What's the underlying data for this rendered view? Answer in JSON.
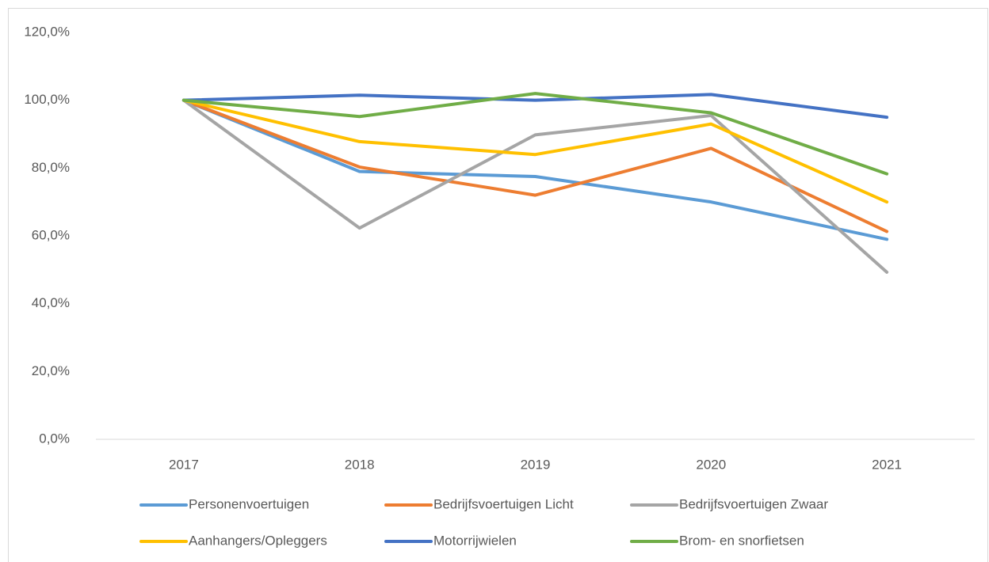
{
  "chart_data": {
    "type": "line",
    "categories": [
      "2017",
      "2018",
      "2019",
      "2020",
      "2021"
    ],
    "series": [
      {
        "name": "Personenvoertuigen",
        "color": "#5b9bd5",
        "values": [
          100,
          79,
          77.5,
          70,
          59
        ]
      },
      {
        "name": "Bedrijfsvoertuigen Licht",
        "color": "#ed7d31",
        "values": [
          100,
          80.3,
          72,
          85.8,
          61.3
        ]
      },
      {
        "name": "Bedrijfsvoertuigen Zwaar",
        "color": "#a5a5a5",
        "values": [
          100,
          62.3,
          89.8,
          95.5,
          49.3
        ]
      },
      {
        "name": "Aanhangers/Opleggers",
        "color": "#ffc000",
        "values": [
          100,
          87.8,
          84,
          93,
          70
        ]
      },
      {
        "name": "Motorrijwielen",
        "color": "#4472c4",
        "values": [
          100,
          101.5,
          100,
          101.7,
          95
        ]
      },
      {
        "name": "Brom- en snorfietsen",
        "color": "#70ad47",
        "values": [
          100,
          95.2,
          102,
          96.3,
          78.3
        ]
      }
    ],
    "ylim": [
      0,
      120
    ],
    "yticks": [
      {
        "value": 0,
        "label": "0,0%"
      },
      {
        "value": 20,
        "label": "20,0%"
      },
      {
        "value": 40,
        "label": "40,0%"
      },
      {
        "value": 60,
        "label": "60,0%"
      },
      {
        "value": 80,
        "label": "80,0%"
      },
      {
        "value": 100,
        "label": "100,0%"
      },
      {
        "value": 120,
        "label": "120,0%"
      }
    ],
    "grid": false,
    "legend": "bottom"
  }
}
